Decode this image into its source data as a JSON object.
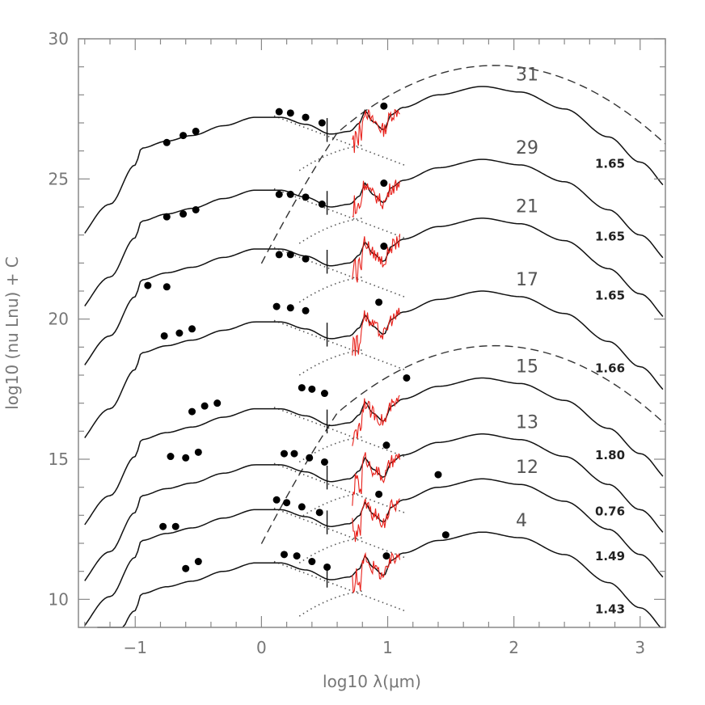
{
  "chart_data": {
    "type": "line",
    "title": "",
    "xlabel": "log10 λ(μm)",
    "ylabel": "log10 (nu Lnu) + C",
    "xlim": [
      -1.45,
      3.2
    ],
    "ylim": [
      9.0,
      30.0
    ],
    "x_ticks": [
      "−1",
      "0",
      "1",
      "2",
      "3"
    ],
    "x_tick_values": [
      -1,
      0,
      1,
      2,
      3
    ],
    "y_ticks": [
      "10",
      "15",
      "20",
      "25",
      "30"
    ],
    "y_tick_values": [
      10,
      15,
      20,
      25,
      30
    ],
    "series": [
      {
        "name": "31",
        "value_label": "1.65",
        "offset": 26.9,
        "start_x": -1.4,
        "photometry": [
          [
            -0.75,
            26.3
          ],
          [
            -0.62,
            26.55
          ],
          [
            -0.52,
            26.7
          ],
          [
            0.14,
            27.4
          ],
          [
            0.23,
            27.35
          ],
          [
            0.35,
            27.2
          ],
          [
            0.48,
            27.0
          ],
          [
            0.97,
            27.6
          ]
        ],
        "dashed_model": true,
        "dashed_peak": 29.05
      },
      {
        "name": "29",
        "value_label": "1.65",
        "offset": 24.3,
        "start_x": -1.4,
        "photometry": [
          [
            -0.75,
            23.65
          ],
          [
            -0.62,
            23.75
          ],
          [
            -0.52,
            23.9
          ],
          [
            0.14,
            24.45
          ],
          [
            0.23,
            24.45
          ],
          [
            0.35,
            24.35
          ],
          [
            0.48,
            24.1
          ],
          [
            0.97,
            24.85
          ]
        ]
      },
      {
        "name": "21",
        "value_label": "1.65",
        "offset": 22.2,
        "start_x": -1.4,
        "photometry": [
          [
            -0.9,
            21.2
          ],
          [
            -0.75,
            21.15
          ],
          [
            0.14,
            22.3
          ],
          [
            0.23,
            22.3
          ],
          [
            0.35,
            22.15
          ],
          [
            0.97,
            22.6
          ]
        ]
      },
      {
        "name": "17",
        "value_label": "1.66",
        "offset": 19.6,
        "start_x": -1.4,
        "photometry": [
          [
            -0.77,
            19.4
          ],
          [
            -0.65,
            19.5
          ],
          [
            -0.55,
            19.65
          ],
          [
            0.12,
            20.45
          ],
          [
            0.23,
            20.4
          ],
          [
            0.35,
            20.3
          ],
          [
            0.93,
            20.6
          ]
        ]
      },
      {
        "name": "15",
        "value_label": "1.80",
        "offset": 16.5,
        "start_x": -1.4,
        "photometry": [
          [
            -0.55,
            16.7
          ],
          [
            -0.45,
            16.9
          ],
          [
            -0.35,
            17.0
          ],
          [
            0.32,
            17.55
          ],
          [
            0.4,
            17.5
          ],
          [
            0.5,
            17.35
          ],
          [
            1.15,
            17.9
          ]
        ],
        "dashed_model": true,
        "dashed_peak": 19.05
      },
      {
        "name": "13",
        "value_label": "0.76",
        "offset": 14.5,
        "start_x": -1.4,
        "photometry": [
          [
            -0.72,
            15.1
          ],
          [
            -0.6,
            15.05
          ],
          [
            -0.5,
            15.25
          ],
          [
            0.18,
            15.2
          ],
          [
            0.26,
            15.2
          ],
          [
            0.38,
            15.05
          ],
          [
            0.5,
            14.9
          ],
          [
            0.99,
            15.5
          ]
        ]
      },
      {
        "name": "12",
        "value_label": "1.49",
        "offset": 12.9,
        "start_x": -1.4,
        "photometry": [
          [
            -0.78,
            12.6
          ],
          [
            -0.68,
            12.6
          ],
          [
            0.12,
            13.55
          ],
          [
            0.2,
            13.45
          ],
          [
            0.32,
            13.3
          ],
          [
            0.46,
            13.1
          ],
          [
            0.93,
            13.75
          ],
          [
            1.4,
            14.45
          ]
        ]
      },
      {
        "name": "4",
        "value_label": "1.43",
        "offset": 11.0,
        "start_x": -1.3,
        "photometry": [
          [
            -0.6,
            11.1
          ],
          [
            -0.5,
            11.35
          ],
          [
            0.18,
            11.6
          ],
          [
            0.28,
            11.55
          ],
          [
            0.4,
            11.35
          ],
          [
            0.52,
            11.15
          ],
          [
            0.99,
            11.55
          ],
          [
            1.46,
            12.3
          ]
        ]
      }
    ],
    "label_format": "curve number near peak, value at right edge",
    "colors": {
      "model": "#111111",
      "spectrum": "#e8201a",
      "points": "#000000",
      "dotted": "#555555",
      "frame": "#888888"
    }
  }
}
